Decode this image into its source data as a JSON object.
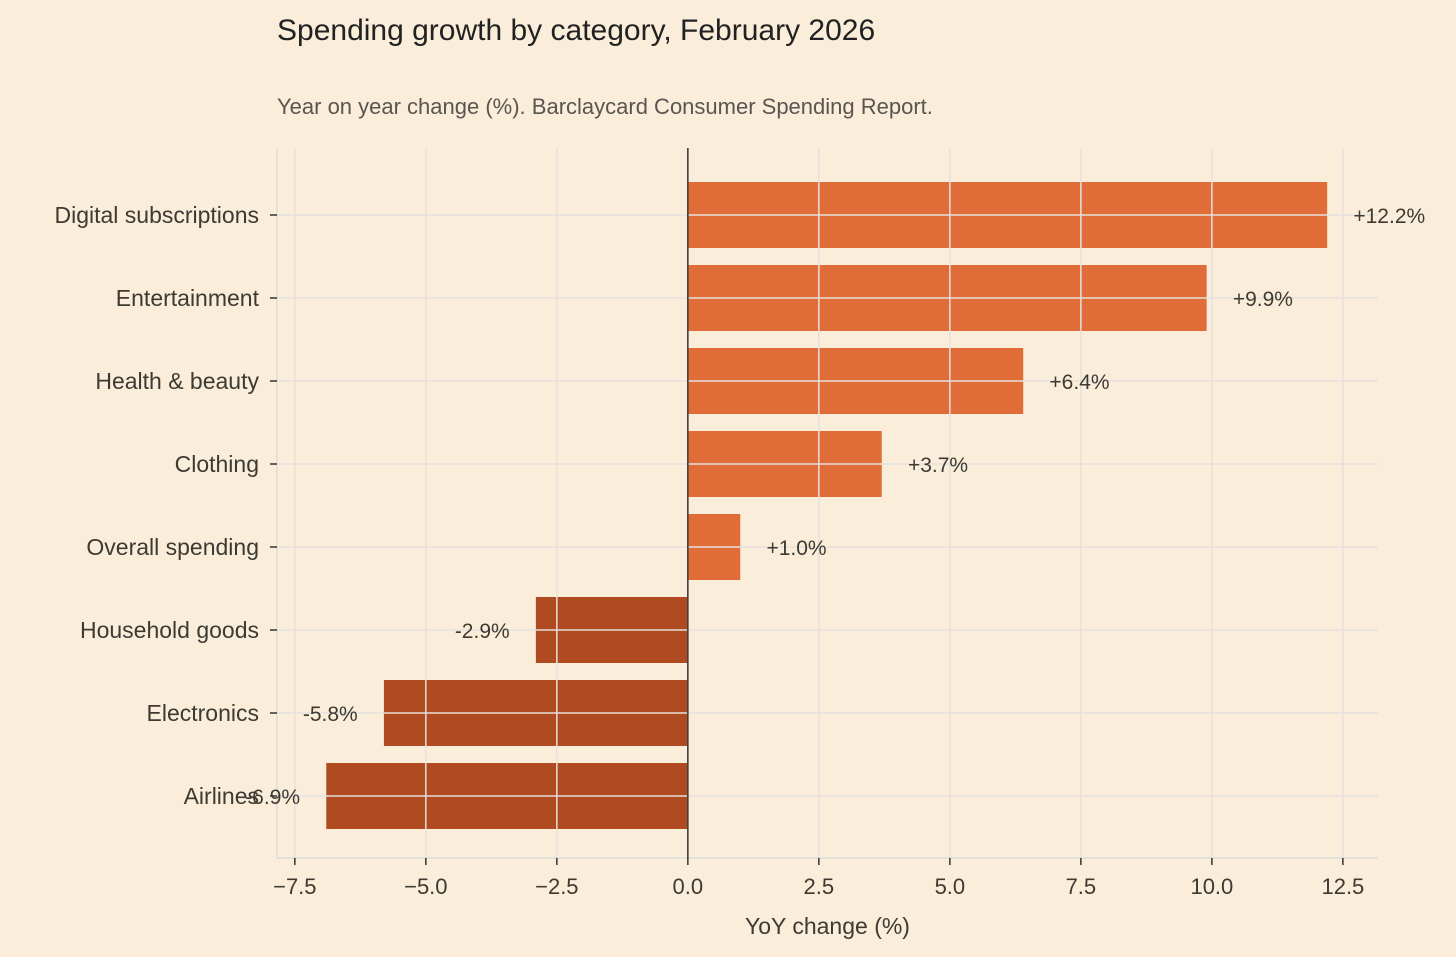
{
  "chart_data": {
    "type": "bar",
    "orientation": "horizontal",
    "title": "Spending growth by category, February 2026",
    "subtitle": "Year on year change (%). Barclaycard Consumer Spending Report.",
    "xlabel": "YoY change (%)",
    "ylabel": "",
    "categories": [
      "Digital subscriptions",
      "Entertainment",
      "Health & beauty",
      "Clothing",
      "Overall spending",
      "Household goods",
      "Electronics",
      "Airlines"
    ],
    "values": [
      12.2,
      9.9,
      6.4,
      3.7,
      1.0,
      -2.9,
      -5.8,
      -6.9
    ],
    "data_labels": [
      "+12.2%",
      "+9.9%",
      "+6.4%",
      "+3.7%",
      "+1.0%",
      "-2.9%",
      "-5.8%",
      "-6.9%"
    ],
    "xlim": [
      -7.84,
      13.17
    ],
    "xticks": [
      -7.5,
      -5.0,
      -2.5,
      0.0,
      2.5,
      5.0,
      7.5,
      10.0,
      12.5
    ],
    "xtick_labels": [
      "−7.5",
      "−5.0",
      "−2.5",
      "0.0",
      "2.5",
      "5.0",
      "7.5",
      "10.0",
      "12.5"
    ],
    "grid": true,
    "colors": {
      "positive": "#e06c38",
      "negative": "#b04a20",
      "background": "#faeedb",
      "grid": "#e6e0dc"
    }
  }
}
